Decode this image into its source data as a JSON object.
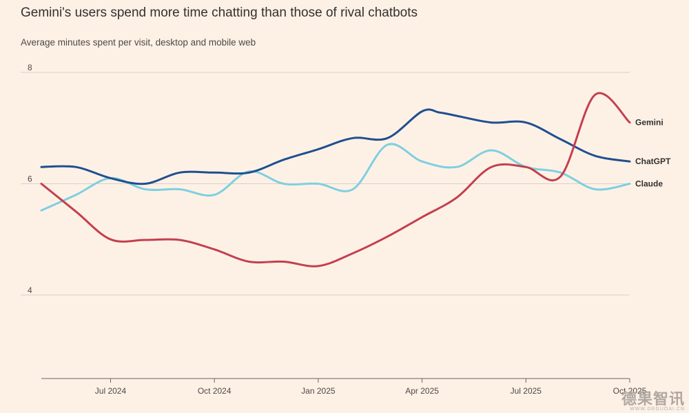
{
  "chart_data": {
    "type": "line",
    "title": "Gemini's users spend more time chatting than those of rival chatbots",
    "subtitle": "Average minutes spent per visit, desktop and mobile web",
    "xlabel": "",
    "ylabel": "",
    "ylim": [
      2.5,
      8
    ],
    "xlim": [
      0,
      17
    ],
    "y_ticks": [
      4,
      6,
      8
    ],
    "y_tick_labels": [
      "4",
      "6",
      "8"
    ],
    "x_ticks": [
      2,
      5,
      8,
      11,
      14,
      17
    ],
    "x_tick_labels": [
      "Jul 2024",
      "Oct 2024",
      "Jan 2025",
      "Apr 2025",
      "Jul 2025",
      "Oct 2025"
    ],
    "grid": true,
    "colors": {
      "ChatGPT": "#1f4f8f",
      "Gemini": "#c43f4e",
      "Claude": "#7fcfe0",
      "grid": "#d7cec6",
      "axis": "#6b6460"
    },
    "series": [
      {
        "name": "ChatGPT",
        "x": [
          0,
          1,
          2,
          3,
          4,
          5,
          6,
          7,
          8,
          9,
          10,
          11,
          11.5,
          12,
          13,
          14,
          15,
          16,
          17
        ],
        "values": [
          6.3,
          6.3,
          6.1,
          6.0,
          6.2,
          6.2,
          6.2,
          6.43,
          6.62,
          6.82,
          6.82,
          7.3,
          7.28,
          7.22,
          7.1,
          7.1,
          6.8,
          6.5,
          6.4
        ]
      },
      {
        "name": "Gemini",
        "x": [
          0,
          1,
          2,
          3,
          4,
          5,
          6,
          7,
          8,
          9,
          10,
          11,
          12,
          13,
          14,
          15,
          16,
          17
        ],
        "values": [
          6.0,
          5.5,
          5.0,
          4.99,
          4.99,
          4.82,
          4.6,
          4.6,
          4.52,
          4.75,
          5.05,
          5.4,
          5.75,
          6.3,
          6.3,
          6.13,
          7.6,
          7.1
        ]
      },
      {
        "name": "Claude",
        "x": [
          0,
          1,
          2,
          3,
          4,
          5,
          6,
          7,
          8,
          9,
          10,
          11,
          12,
          13,
          14,
          15,
          16,
          17
        ],
        "values": [
          5.52,
          5.8,
          6.1,
          5.9,
          5.9,
          5.8,
          6.22,
          6.0,
          6.0,
          5.9,
          6.7,
          6.4,
          6.3,
          6.6,
          6.3,
          6.2,
          5.9,
          6.0
        ]
      }
    ]
  },
  "watermark": {
    "main": "德果智讯",
    "sub": "WWW.DEGUOAI.CN"
  }
}
